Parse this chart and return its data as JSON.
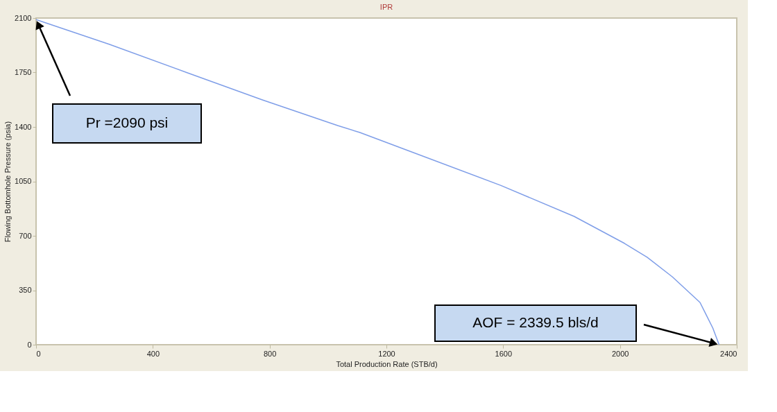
{
  "chart_data": {
    "type": "line",
    "title": "IPR",
    "xlabel": "Total Production Rate (STB/d)",
    "ylabel": "Flowing Bottomhole Pressure (psia)",
    "x": [
      0,
      250,
      517,
      775,
      1033,
      1109,
      1264,
      1592,
      1843,
      2015,
      2093,
      2179,
      2274,
      2318,
      2339.5
    ],
    "series": [
      {
        "color": "#7f9ee8",
        "values": [
          2090,
          1932,
          1749,
          1574,
          1409,
          1364,
          1255,
          1024,
          825,
          652,
          562,
          437,
          272,
          107,
          0
        ]
      }
    ],
    "xlim": [
      0,
      2400
    ],
    "xticks": [
      0,
      400,
      800,
      1200,
      1600,
      2000,
      2400
    ],
    "ylim": [
      0,
      2100
    ],
    "yticks": [
      0,
      350,
      700,
      1050,
      1400,
      1750,
      2100
    ],
    "grid": false,
    "marker": "none",
    "line_style": "solid",
    "annotations": [
      "Pr =2090 psi",
      "AOF = 2339.5 bls/d"
    ]
  }
}
